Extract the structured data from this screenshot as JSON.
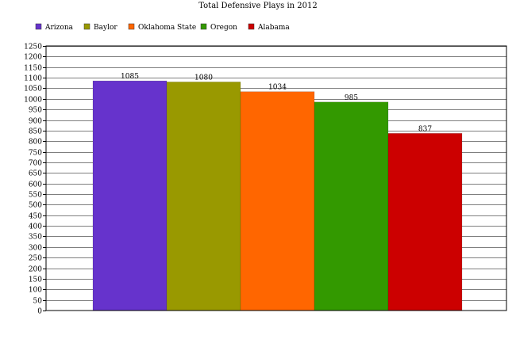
{
  "chart_data": {
    "type": "bar",
    "title": "Total Defensive Plays in 2012",
    "xlabel": "",
    "ylabel": "",
    "categories": [
      "Arizona",
      "Baylor",
      "Oklahoma State",
      "Oregon",
      "Alabama"
    ],
    "values": [
      1085,
      1080,
      1034,
      985,
      837
    ],
    "colors": [
      "#6633cc",
      "#999900",
      "#ff6600",
      "#339900",
      "#cc0000"
    ],
    "ylim": [
      0,
      1250
    ],
    "ytick_step": 50,
    "grid": true,
    "legend_position": "top-left"
  }
}
